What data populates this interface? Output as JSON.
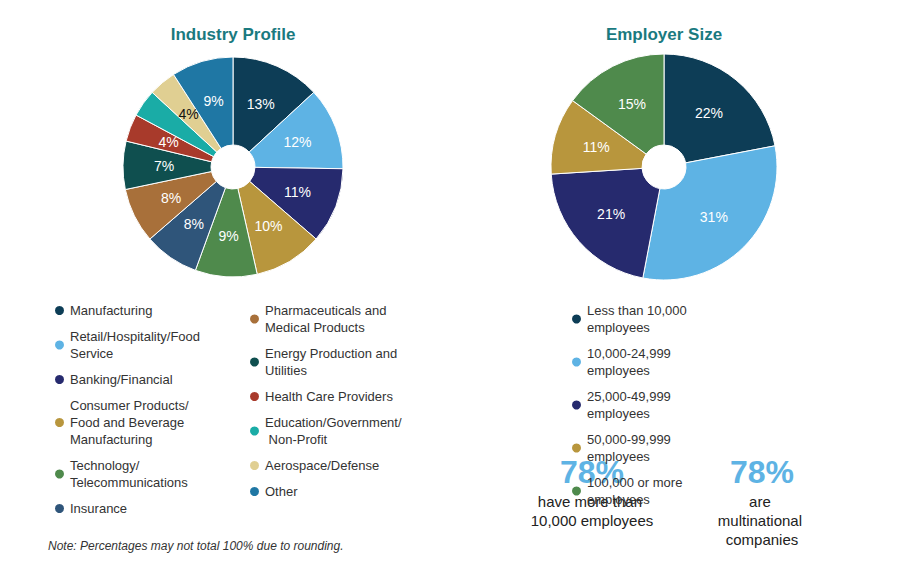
{
  "chart_data": [
    {
      "type": "pie",
      "title": "Industry Profile",
      "categories": [
        "Manufacturing",
        "Retail/Hospitality/Food Service",
        "Banking/Financial",
        "Consumer Products/ Food and Beverage Manufacturing",
        "Technology/ Telecommunications",
        "Insurance",
        "Pharmaceuticals and Medical Products",
        "Energy Production and Utilities",
        "Health Care Providers",
        "Education/Government/ Non-Profit",
        "Aerospace/Defense",
        "Other"
      ],
      "values": [
        13,
        12,
        11,
        10,
        9,
        8,
        8,
        7,
        4,
        4,
        4,
        9
      ],
      "value_labels": [
        "13%",
        "12%",
        "11%",
        "10%",
        "9%",
        "8%",
        "8%",
        "7%",
        "4%",
        "4%",
        "4%",
        "9%"
      ],
      "colors": [
        "#0d3d56",
        "#5eb3e4",
        "#262a6e",
        "#b8963d",
        "#4f8a4c",
        "#2f557a",
        "#a8703a",
        "#0f4f4f",
        "#a83a2b",
        "#1aaca6",
        "#e0cf92",
        "#1f77a4"
      ],
      "data_labels": true,
      "legend": "bottom"
    },
    {
      "type": "pie",
      "title": "Employer Size",
      "categories": [
        "Less than 10,000 employees",
        "10,000-24,999 employees",
        "25,000-49,999 employees",
        "50,000-99,999 employees",
        "100,000 or more employees"
      ],
      "values": [
        22,
        31,
        21,
        11,
        15
      ],
      "value_labels": [
        "22%",
        "31%",
        "21%",
        "11%",
        "15%"
      ],
      "colors": [
        "#0d3d56",
        "#5eb3e4",
        "#262a6e",
        "#b8963d",
        "#4f8a4c"
      ],
      "data_labels": true,
      "legend": "bottom",
      "annotations": [
        {
          "value": 78,
          "label": "78%",
          "text": "have more than 10,000 employees"
        },
        {
          "value": 78,
          "label": "78%",
          "text": "are multinational companies"
        }
      ]
    }
  ],
  "note": "Note: Percentages may not total 100% due to rounding."
}
